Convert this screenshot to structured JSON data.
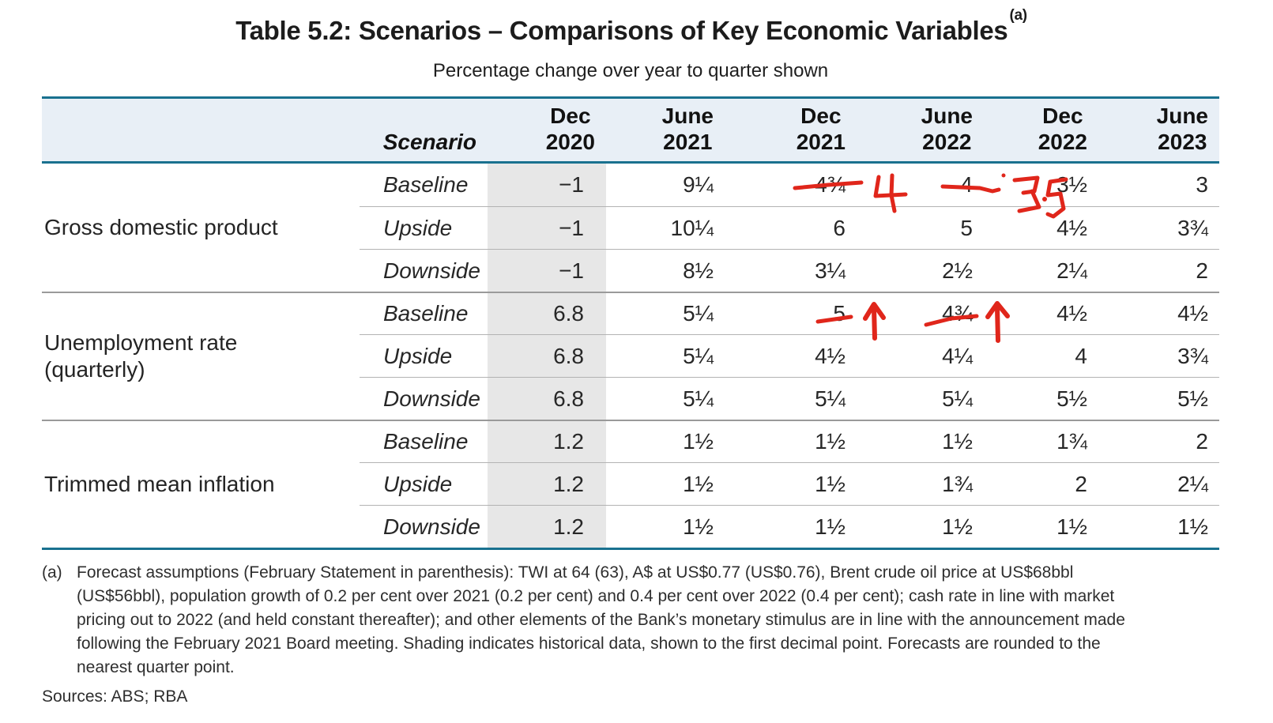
{
  "title": {
    "text": "Table 5.2: Scenarios – Comparisons of Key Economic Variables",
    "superscript": "(a)"
  },
  "subtitle": "Percentage change over year to quarter shown",
  "table": {
    "scenario_header": "Scenario",
    "columns": [
      {
        "line1": "Dec",
        "line2": "2020"
      },
      {
        "line1": "June",
        "line2": "2021"
      },
      {
        "line1": "Dec",
        "line2": "2021"
      },
      {
        "line1": "June",
        "line2": "2022"
      },
      {
        "line1": "Dec",
        "line2": "2022"
      },
      {
        "line1": "June",
        "line2": "2023"
      }
    ],
    "sections": [
      {
        "id": "gross-domestic-product",
        "label_lines": [
          "Gross domestic product"
        ],
        "rows": [
          {
            "scenario": "Baseline",
            "values": [
              "−1",
              "9¼",
              "4¾",
              "4",
              "3½",
              "3"
            ]
          },
          {
            "scenario": "Upside",
            "values": [
              "−1",
              "10¼",
              "6",
              "5",
              "4½",
              "3¾"
            ]
          },
          {
            "scenario": "Downside",
            "values": [
              "−1",
              "8½",
              "3¼",
              "2½",
              "2¼",
              "2"
            ]
          }
        ]
      },
      {
        "id": "unemployment-rate",
        "label_lines": [
          "Unemployment rate",
          "(quarterly)"
        ],
        "rows": [
          {
            "scenario": "Baseline",
            "values": [
              "6.8",
              "5¼",
              "5",
              "4¾",
              "4½",
              "4½"
            ]
          },
          {
            "scenario": "Upside",
            "values": [
              "6.8",
              "5¼",
              "4½",
              "4¼",
              "4",
              "3¾"
            ]
          },
          {
            "scenario": "Downside",
            "values": [
              "6.8",
              "5¼",
              "5¼",
              "5¼",
              "5½",
              "5½"
            ]
          }
        ]
      },
      {
        "id": "trimmed-mean-inflation",
        "label_lines": [
          "Trimmed mean inflation"
        ],
        "rows": [
          {
            "scenario": "Baseline",
            "values": [
              "1.2",
              "1½",
              "1½",
              "1½",
              "1¾",
              "2"
            ]
          },
          {
            "scenario": "Upside",
            "values": [
              "1.2",
              "1½",
              "1½",
              "1¾",
              "2",
              "2¼"
            ]
          },
          {
            "scenario": "Downside",
            "values": [
              "1.2",
              "1½",
              "1½",
              "1½",
              "1½",
              "1½"
            ]
          }
        ]
      }
    ]
  },
  "annotations": [
    {
      "location": "Gross domestic product – Baseline – Dec 2021",
      "type": "strikethrough-with-replacement",
      "original": "4¾",
      "handwritten_replacement": "4"
    },
    {
      "location": "Gross domestic product – Baseline – June 2022",
      "type": "strikethrough-with-replacement",
      "original": "4",
      "handwritten_replacement": "3.5"
    },
    {
      "location": "Unemployment rate – Baseline – Dec 2021",
      "type": "strikethrough-with-up-arrow",
      "original": "5"
    },
    {
      "location": "Unemployment rate – Baseline – June 2022",
      "type": "strikethrough-with-up-arrow",
      "original": "4¾"
    }
  ],
  "footnote": {
    "marker": "(a)",
    "text": "Forecast assumptions (February Statement in parenthesis): TWI at 64 (63), A$ at US$0.77 (US$0.76), Brent crude oil price at US$68bbl (US$56bbl), population growth of 0.2 per cent over 2021 (0.2 per cent) and 0.4 per cent over 2022 (0.4 per cent); cash rate in line with market pricing out to 2022 (and held constant thereafter); and other elements of the Bank’s monetary stimulus are in line with the announcement made following the February 2021 Board meeting. Shading indicates historical data, shown to the first decimal point. Forecasts are rounded to the nearest quarter point."
  },
  "sources": "Sources: ABS; RBA",
  "colors": {
    "teal_border": "#19718f",
    "header_bg": "#e8eff6",
    "shaded_column": "#e7e7e7",
    "row_divider": "#b3b3b3",
    "section_divider": "#9a9a9a",
    "annotation_red": "#e0261b",
    "text": "#262626"
  }
}
